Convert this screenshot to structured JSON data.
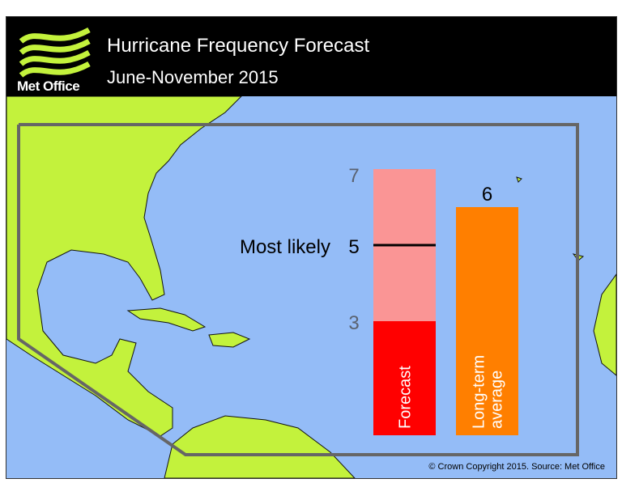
{
  "header": {
    "title": "Hurricane Frequency Forecast",
    "subtitle": "June-November 2015",
    "brand": "Met Office"
  },
  "colors": {
    "ocean": "#94bcf7",
    "land": "#c3f23c",
    "forecast_range": "#fa9595",
    "forecast_low": "#ff0000",
    "average": "#ff7f00",
    "region_outline": "#666666"
  },
  "chart_data": {
    "type": "bar",
    "categories": [
      "Forecast",
      "Long-term average"
    ],
    "forecast": {
      "label": "Forecast",
      "low": 3,
      "high": 7,
      "most_likely": 5,
      "most_likely_label": "Most likely",
      "tick_labels": [
        "7",
        "5",
        "3"
      ]
    },
    "average": {
      "label": "Long-term average",
      "value": 6,
      "value_label": "6"
    },
    "ylim": [
      0,
      7
    ]
  },
  "footer": {
    "copyright": "© Crown Copyright 2015. Source: Met Office"
  }
}
